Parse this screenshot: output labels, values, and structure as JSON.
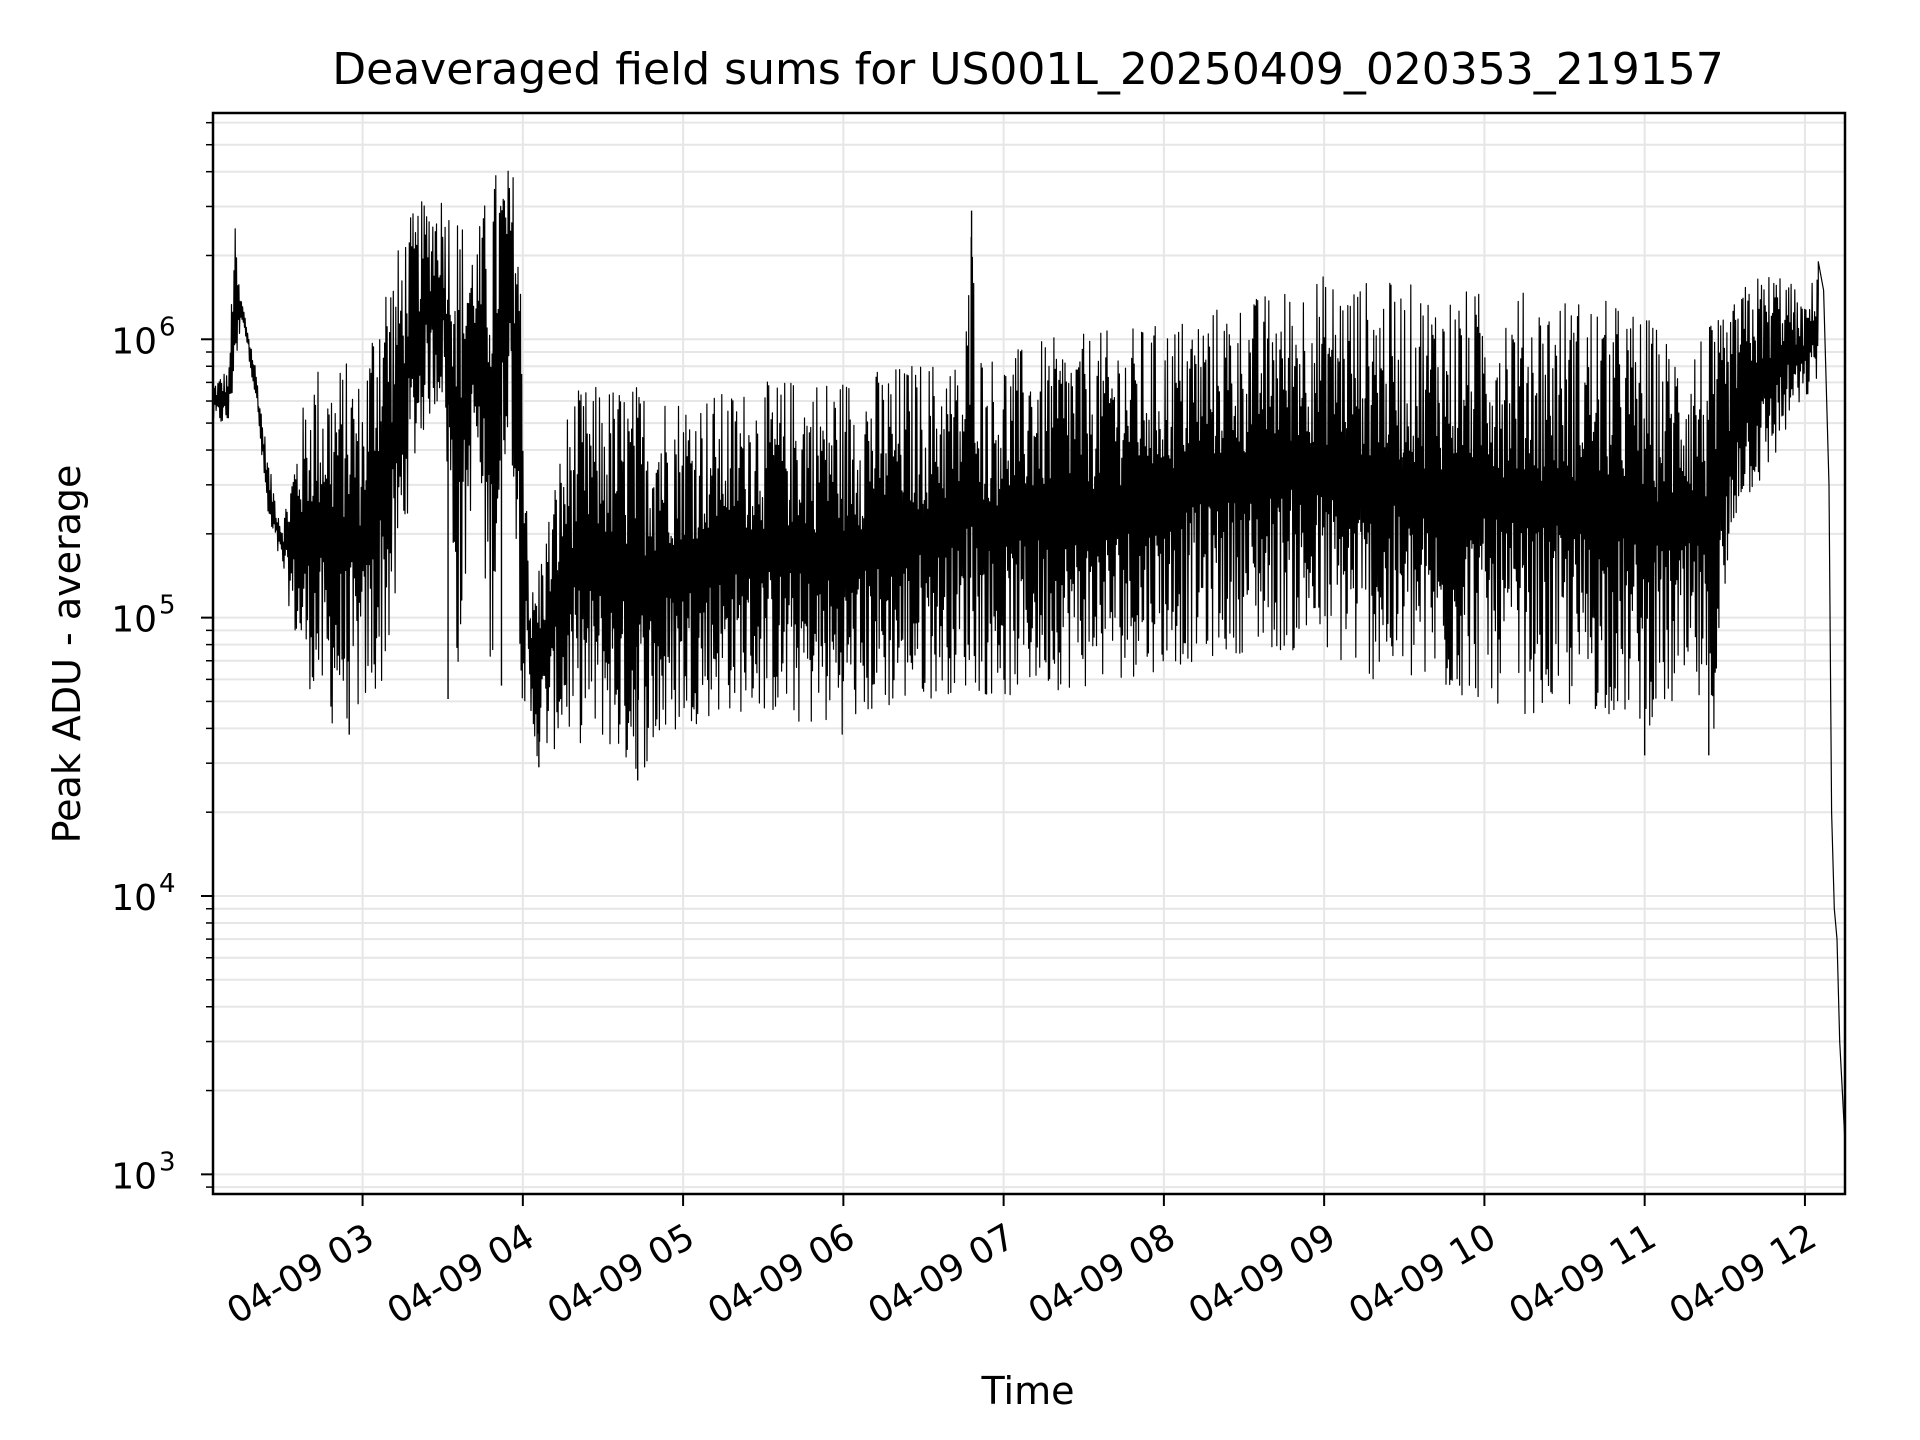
{
  "chart_data": {
    "type": "line",
    "title": "Deaveraged field sums for US001L_20250409_020353_219157",
    "xlabel": "Time",
    "ylabel": "Peak ADU - average",
    "y_scale": "log",
    "ylim": [
      850,
      6500000
    ],
    "xlim": [
      "2025-04-09 02:04",
      "2025-04-09 12:15"
    ],
    "grid": true,
    "line_color": "#000000",
    "grid_color": "#e6e6e6",
    "x_ticks": [
      {
        "t": "2025-04-09 03:00",
        "label": "04-09 03"
      },
      {
        "t": "2025-04-09 04:00",
        "label": "04-09 04"
      },
      {
        "t": "2025-04-09 05:00",
        "label": "04-09 05"
      },
      {
        "t": "2025-04-09 06:00",
        "label": "04-09 06"
      },
      {
        "t": "2025-04-09 07:00",
        "label": "04-09 07"
      },
      {
        "t": "2025-04-09 08:00",
        "label": "04-09 08"
      },
      {
        "t": "2025-04-09 09:00",
        "label": "04-09 09"
      },
      {
        "t": "2025-04-09 10:00",
        "label": "04-09 10"
      },
      {
        "t": "2025-04-09 11:00",
        "label": "04-09 11"
      },
      {
        "t": "2025-04-09 12:00",
        "label": "04-09 12"
      }
    ],
    "y_ticks": [
      {
        "value": 1000,
        "base": "10",
        "exp": "3"
      },
      {
        "value": 10000,
        "base": "10",
        "exp": "4"
      },
      {
        "value": 100000,
        "base": "10",
        "exp": "5"
      },
      {
        "value": 1000000,
        "base": "10",
        "exp": "6"
      }
    ],
    "series": [
      {
        "upper_envelope": [
          [
            "2025-04-09 02:04",
            700000
          ],
          [
            "2025-04-09 02:10",
            800000
          ],
          [
            "2025-04-09 02:12",
            2800000
          ],
          [
            "2025-04-09 02:14",
            1500000
          ],
          [
            "2025-04-09 02:20",
            800000
          ],
          [
            "2025-04-09 02:25",
            350000
          ],
          [
            "2025-04-09 02:30",
            220000
          ],
          [
            "2025-04-09 02:36",
            500000
          ],
          [
            "2025-04-09 02:42",
            850000
          ],
          [
            "2025-04-09 02:48",
            800000
          ],
          [
            "2025-04-09 02:55",
            850000
          ],
          [
            "2025-04-09 03:00",
            700000
          ],
          [
            "2025-04-09 03:06",
            1800000
          ],
          [
            "2025-04-09 03:12",
            2000000
          ],
          [
            "2025-04-09 03:18",
            2800000
          ],
          [
            "2025-04-09 03:24",
            3300000
          ],
          [
            "2025-04-09 03:30",
            3500000
          ],
          [
            "2025-04-09 03:36",
            3000000
          ],
          [
            "2025-04-09 03:42",
            2200000
          ],
          [
            "2025-04-09 03:48",
            4000000
          ],
          [
            "2025-04-09 03:52",
            4300000
          ],
          [
            "2025-04-09 03:58",
            4000000
          ],
          [
            "2025-04-09 04:03",
            120000
          ],
          [
            "2025-04-09 04:10",
            250000
          ],
          [
            "2025-04-09 04:18",
            650000
          ],
          [
            "2025-04-09 04:30",
            700000
          ],
          [
            "2025-04-09 04:45",
            700000
          ],
          [
            "2025-04-09 05:00",
            650000
          ],
          [
            "2025-04-09 05:15",
            650000
          ],
          [
            "2025-04-09 05:30",
            700000
          ],
          [
            "2025-04-09 05:45",
            750000
          ],
          [
            "2025-04-09 06:00",
            750000
          ],
          [
            "2025-04-09 06:15",
            800000
          ],
          [
            "2025-04-09 06:30",
            850000
          ],
          [
            "2025-04-09 06:45",
            850000
          ],
          [
            "2025-04-09 06:48",
            2900000
          ],
          [
            "2025-04-09 06:52",
            900000
          ],
          [
            "2025-04-09 07:00",
            900000
          ],
          [
            "2025-04-09 07:15",
            1000000
          ],
          [
            "2025-04-09 07:30",
            1050000
          ],
          [
            "2025-04-09 07:45",
            1100000
          ],
          [
            "2025-04-09 08:00",
            1150000
          ],
          [
            "2025-04-09 08:15",
            1300000
          ],
          [
            "2025-04-09 08:30",
            1400000
          ],
          [
            "2025-04-09 08:45",
            1550000
          ],
          [
            "2025-04-09 08:55",
            1750000
          ],
          [
            "2025-04-09 09:15",
            1650000
          ],
          [
            "2025-04-09 09:30",
            1600000
          ],
          [
            "2025-04-09 09:45",
            1550000
          ],
          [
            "2025-04-09 10:00",
            1500000
          ],
          [
            "2025-04-09 10:15",
            1500000
          ],
          [
            "2025-04-09 10:30",
            1450000
          ],
          [
            "2025-04-09 10:45",
            1400000
          ],
          [
            "2025-04-09 11:00",
            1250000
          ],
          [
            "2025-04-09 11:10",
            1000000
          ],
          [
            "2025-04-09 11:20",
            1100000
          ],
          [
            "2025-04-09 11:30",
            1200000
          ],
          [
            "2025-04-09 11:40",
            1700000
          ],
          [
            "2025-04-09 11:50",
            1800000
          ],
          [
            "2025-04-09 11:55",
            1600000
          ],
          [
            "2025-04-09 12:00",
            1300000
          ],
          [
            "2025-04-09 12:05",
            1950000
          ]
        ],
        "lower_envelope": [
          [
            "2025-04-09 02:04",
            500000
          ],
          [
            "2025-04-09 02:10",
            480000
          ],
          [
            "2025-04-09 02:15",
            1200000
          ],
          [
            "2025-04-09 02:20",
            600000
          ],
          [
            "2025-04-09 02:25",
            200000
          ],
          [
            "2025-04-09 02:30",
            150000
          ],
          [
            "2025-04-09 02:36",
            70000
          ],
          [
            "2025-04-09 02:42",
            50000
          ],
          [
            "2025-04-09 02:48",
            40000
          ],
          [
            "2025-04-09 02:55",
            42000
          ],
          [
            "2025-04-09 03:00",
            45000
          ],
          [
            "2025-04-09 03:06",
            50000
          ],
          [
            "2025-04-09 03:12",
            90000
          ],
          [
            "2025-04-09 03:18",
            300000
          ],
          [
            "2025-04-09 03:24",
            500000
          ],
          [
            "2025-04-09 03:30",
            600000
          ],
          [
            "2025-04-09 03:36",
            55000
          ],
          [
            "2025-04-09 03:42",
            400000
          ],
          [
            "2025-04-09 03:48",
            60000
          ],
          [
            "2025-04-09 03:55",
            600000
          ],
          [
            "2025-04-09 04:00",
            45000
          ],
          [
            "2025-04-09 04:06",
            30000
          ],
          [
            "2025-04-09 04:15",
            35000
          ],
          [
            "2025-04-09 04:30",
            35000
          ],
          [
            "2025-04-09 04:40",
            27000
          ],
          [
            "2025-04-09 04:50",
            30000
          ],
          [
            "2025-04-09 05:00",
            40000
          ],
          [
            "2025-04-09 05:15",
            45000
          ],
          [
            "2025-04-09 05:30",
            45000
          ],
          [
            "2025-04-09 05:45",
            40000
          ],
          [
            "2025-04-09 06:00",
            38000
          ],
          [
            "2025-04-09 06:15",
            45000
          ],
          [
            "2025-04-09 06:30",
            50000
          ],
          [
            "2025-04-09 06:45",
            55000
          ],
          [
            "2025-04-09 07:00",
            50000
          ],
          [
            "2025-04-09 07:15",
            55000
          ],
          [
            "2025-04-09 07:30",
            55000
          ],
          [
            "2025-04-09 07:45",
            60000
          ],
          [
            "2025-04-09 08:00",
            65000
          ],
          [
            "2025-04-09 08:15",
            70000
          ],
          [
            "2025-04-09 08:30",
            75000
          ],
          [
            "2025-04-09 08:45",
            75000
          ],
          [
            "2025-04-09 09:00",
            70000
          ],
          [
            "2025-04-09 09:15",
            60000
          ],
          [
            "2025-04-09 09:30",
            55000
          ],
          [
            "2025-04-09 09:45",
            50000
          ],
          [
            "2025-04-09 10:00",
            50000
          ],
          [
            "2025-04-09 10:15",
            45000
          ],
          [
            "2025-04-09 10:30",
            45000
          ],
          [
            "2025-04-09 10:45",
            45000
          ],
          [
            "2025-04-09 11:00",
            40000
          ],
          [
            "2025-04-09 11:10",
            45000
          ],
          [
            "2025-04-09 11:20",
            45000
          ],
          [
            "2025-04-09 11:25",
            33000
          ],
          [
            "2025-04-09 11:35",
            250000
          ],
          [
            "2025-04-09 11:45",
            300000
          ],
          [
            "2025-04-09 11:55",
            500000
          ],
          [
            "2025-04-09 12:05",
            700000
          ]
        ],
        "tail": [
          [
            "2025-04-09 12:05",
            1900000
          ],
          [
            "2025-04-09 12:07",
            1500000
          ],
          [
            "2025-04-09 12:09",
            300000
          ],
          [
            "2025-04-09 12:10",
            20000
          ],
          [
            "2025-04-09 12:11",
            9000
          ],
          [
            "2025-04-09 12:12",
            7000
          ],
          [
            "2025-04-09 12:13",
            3000
          ],
          [
            "2025-04-09 12:14",
            2000
          ],
          [
            "2025-04-09 12:15",
            1300
          ]
        ],
        "spikes": [
          [
            "2025-04-09 02:55",
            38000
          ],
          [
            "2025-04-09 03:32",
            51000
          ],
          [
            "2025-04-09 03:52",
            57000
          ],
          [
            "2025-04-09 04:06",
            29000
          ],
          [
            "2025-04-09 04:43",
            26000
          ],
          [
            "2025-04-09 06:48",
            2900000
          ],
          [
            "2025-04-09 11:00",
            32000
          ],
          [
            "2025-04-09 11:24",
            32000
          ]
        ]
      }
    ]
  }
}
